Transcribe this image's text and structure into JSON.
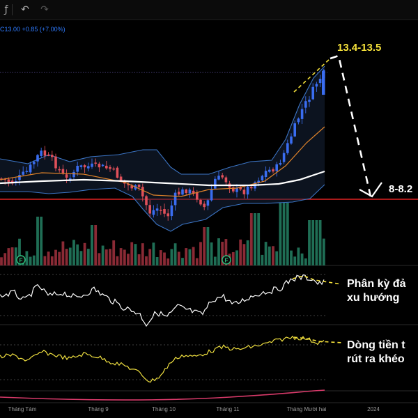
{
  "toolbar": {
    "items": [
      {
        "label": "ƒ",
        "icon": "indicator-icon"
      },
      {
        "label": "↶",
        "icon": "undo-icon"
      },
      {
        "label": "↷",
        "icon": "redo-icon"
      }
    ]
  },
  "legend": {
    "prefix": "C",
    "close": "13.00",
    "change": "+0.85",
    "change_pct": "(+7.00%)"
  },
  "annotations": {
    "target_high": "13.4-13.5",
    "target_low": "8-8.2",
    "rsi_note": "Phân kỳ đả",
    "rsi_note_2": "xu hướng",
    "flow_note": "Dòng tiền t",
    "flow_note_2": "rút ra khéo"
  },
  "event_marker": "F",
  "time_axis": [
    "Tháng Tám",
    "Tháng 9",
    "Tháng 10",
    "Tháng 11",
    "Tháng Mười hai",
    "2024"
  ],
  "colors": {
    "up": "#3a6df0",
    "down": "#e0505a",
    "ma_long": "#ffffff",
    "ma_short": "#e0832a",
    "band": "#3b74c4",
    "support": "#e22222",
    "target_text": "#f5e13a",
    "flow_line": "#f0e040",
    "vol_up": "#1f6e55",
    "vol_down": "#8a2a35"
  },
  "chart_data": {
    "type": "candlestick",
    "last_close": 13.0,
    "change": 0.85,
    "change_pct": 7.0,
    "support_level": 9.05,
    "target_high": [
      13.4,
      13.5
    ],
    "target_low": [
      8.0,
      8.2
    ],
    "rsi_divergence": "bearish",
    "money_flow_divergence": "bearish"
  }
}
